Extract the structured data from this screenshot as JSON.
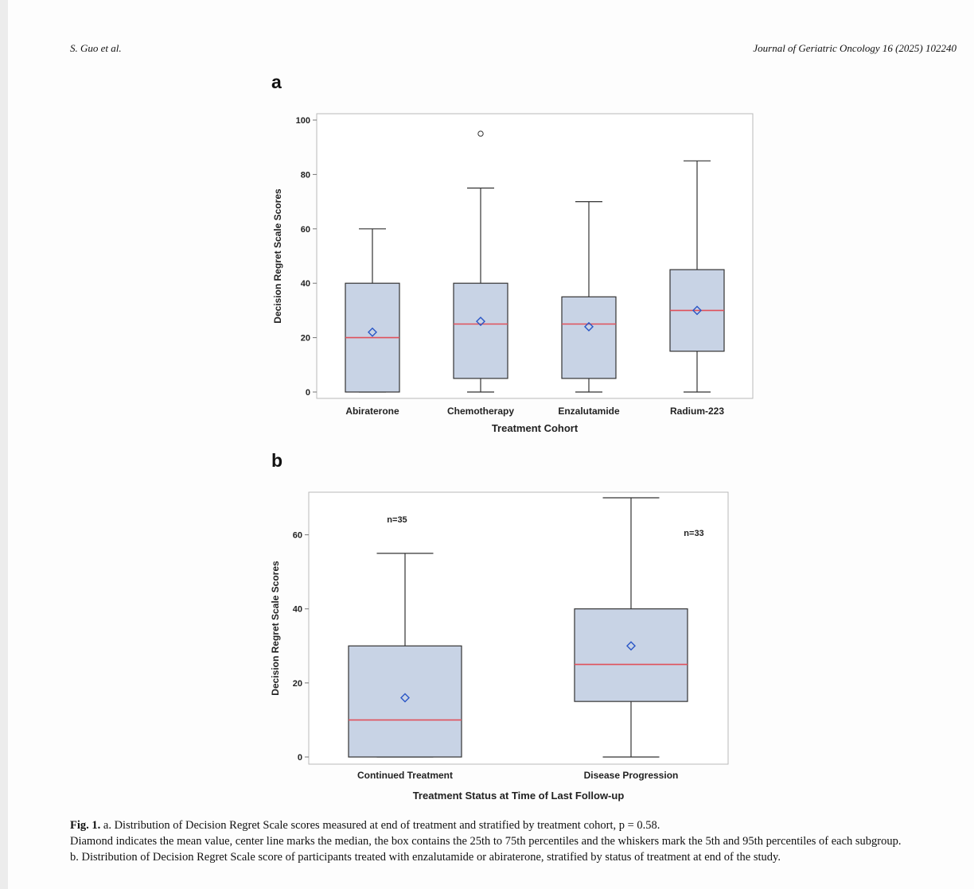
{
  "header": {
    "authors": "S. Guo et al.",
    "journal": "Journal of Geriatric Oncology 16 (2025) 102240"
  },
  "chart_data": [
    {
      "panel": "a",
      "type": "box",
      "xlabel": "Treatment Cohort",
      "ylabel": "Decision Regret Scale Scores",
      "ylim": [
        0,
        100
      ],
      "yticks": [
        0,
        20,
        40,
        60,
        80,
        100
      ],
      "categories": [
        "Abiraterone",
        "Chemotherapy",
        "Enzalutamide",
        "Radium-223"
      ],
      "boxes": [
        {
          "whisker_low": 0,
          "q1": 0,
          "median": 20,
          "q3": 40,
          "whisker_high": 60,
          "mean": 22,
          "outliers": []
        },
        {
          "whisker_low": 0,
          "q1": 5,
          "median": 25,
          "q3": 40,
          "whisker_high": 75,
          "mean": 26,
          "outliers": [
            95
          ]
        },
        {
          "whisker_low": 0,
          "q1": 5,
          "median": 25,
          "q3": 35,
          "whisker_high": 70,
          "mean": 24,
          "outliers": []
        },
        {
          "whisker_low": 0,
          "q1": 15,
          "median": 30,
          "q3": 45,
          "whisker_high": 85,
          "mean": 30,
          "outliers": []
        }
      ],
      "annotations": []
    },
    {
      "panel": "b",
      "type": "box",
      "xlabel": "Treatment Status at Time of Last Follow-up",
      "ylabel": "Decision Regret Scale Scores",
      "ylim": [
        0,
        70
      ],
      "yticks": [
        0,
        20,
        40,
        60
      ],
      "categories": [
        "Continued Treatment",
        "Disease Progression"
      ],
      "boxes": [
        {
          "whisker_low": 0,
          "q1": 0,
          "median": 10,
          "q3": 30,
          "whisker_high": 55,
          "mean": 16,
          "outliers": []
        },
        {
          "whisker_low": 0,
          "q1": 15,
          "median": 25,
          "q3": 40,
          "whisker_high": 70,
          "mean": 30,
          "outliers": []
        }
      ],
      "annotations": [
        "n=35",
        "n=33"
      ]
    }
  ],
  "caption": {
    "label": "Fig. 1.",
    "line1": "a. Distribution of Decision Regret Scale scores measured at end of treatment and stratified by treatment cohort, p = 0.58.",
    "line2": "Diamond indicates the mean value, center line marks the median, the box contains the 25th to 75th percentiles and the whiskers mark the 5th and 95th percentiles of each subgroup.",
    "line3": "b. Distribution of Decision Regret Scale score of participants treated with enzalutamide or abiraterone, stratified by status of treatment at end of the study."
  },
  "colors": {
    "box_fill": "#c8d3e5",
    "median_line": "#e0505a",
    "mean_marker": "#2a56c6",
    "frame": "#b9b9b9",
    "ink": "#222222"
  }
}
